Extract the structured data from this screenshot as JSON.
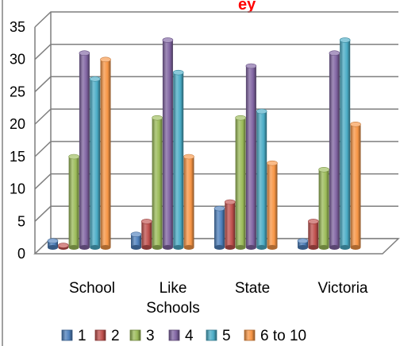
{
  "chart_data": {
    "type": "bar",
    "title": "ey",
    "categories": [
      "School",
      "Like\nSchools",
      "State",
      "Victoria"
    ],
    "series": [
      {
        "name": "1",
        "values": [
          1,
          2,
          6,
          1
        ]
      },
      {
        "name": "2",
        "values": [
          0.3,
          4,
          7,
          4
        ]
      },
      {
        "name": "3",
        "values": [
          14,
          20,
          20,
          12
        ]
      },
      {
        "name": "4",
        "values": [
          30,
          32,
          28,
          30
        ]
      },
      {
        "name": "5",
        "values": [
          26,
          27,
          21,
          32
        ]
      },
      {
        "name": "6 to 10",
        "values": [
          29,
          14,
          13,
          19
        ]
      }
    ],
    "ylim": [
      0,
      35
    ],
    "yticks": [
      0,
      5,
      10,
      15,
      20,
      25,
      30,
      35
    ],
    "grid": true,
    "legend": "bottom",
    "colors": {
      "series": [
        "#4F81BD",
        "#C0504D",
        "#9BBB59",
        "#8064A2",
        "#4BACC6",
        "#F79646"
      ],
      "title": "#FF0000",
      "grid": "#7F7F7F",
      "axis": "#000000"
    }
  }
}
